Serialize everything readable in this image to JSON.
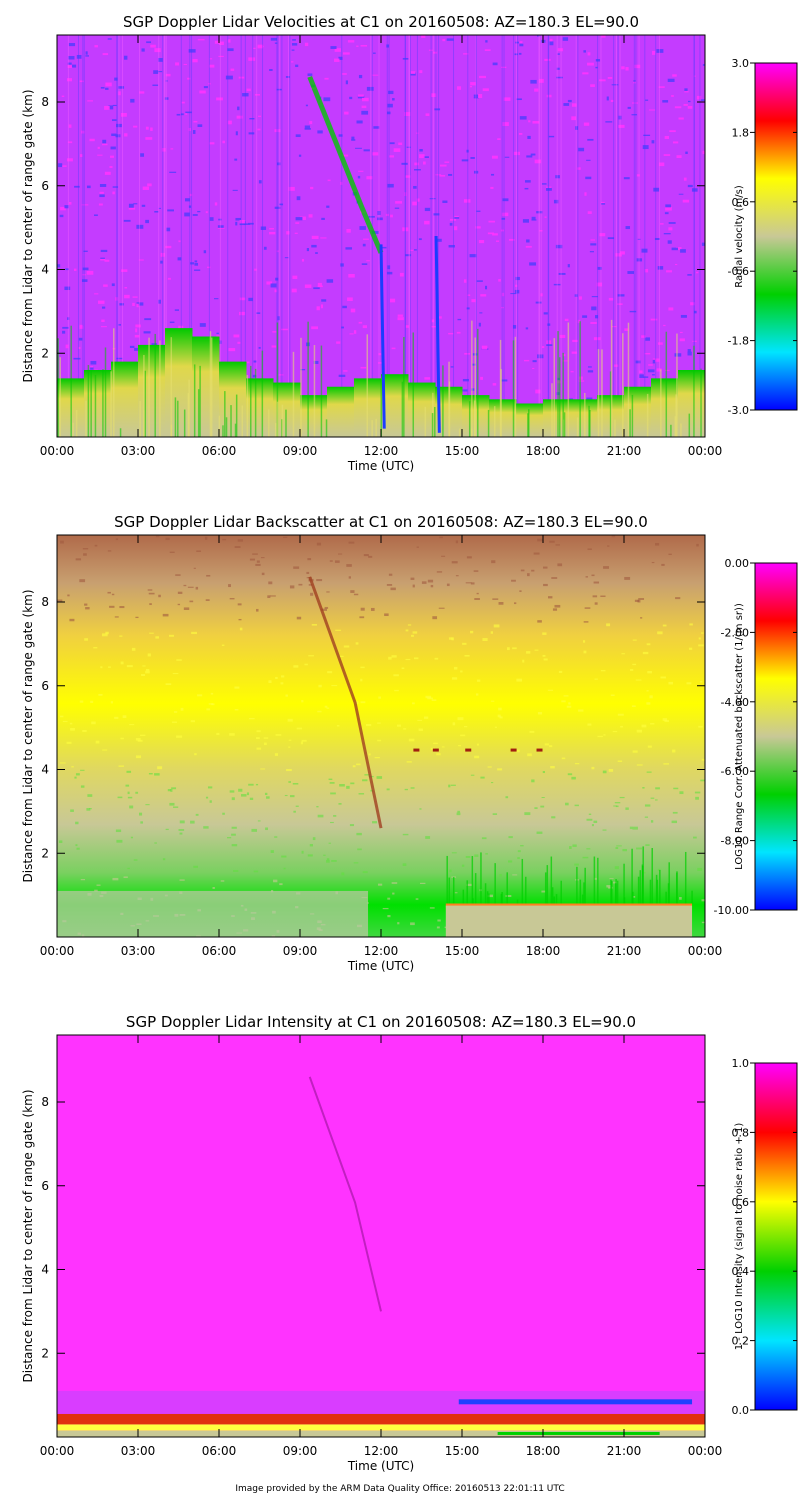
{
  "footer": "Image provided by the ARM Data Quality Office: 20160513 22:01:11 UTC",
  "chart_data": [
    {
      "type": "heatmap",
      "title": "SGP Doppler Lidar Velocities at C1 on 20160508: AZ=180.3 EL=90.0",
      "xlabel": "Time (UTC)",
      "ylabel": "Distance from Lidar to center of range gate (km)",
      "x_ticks": [
        "00:00",
        "03:00",
        "06:00",
        "09:00",
        "12:00",
        "15:00",
        "18:00",
        "21:00",
        "00:00"
      ],
      "y_ticks": [
        "2",
        "4",
        "6",
        "8"
      ],
      "xlim_hours": [
        0,
        24
      ],
      "ylim_km": [
        0,
        9.6
      ],
      "colorbar": {
        "label": "Radial velocity (m/s)",
        "ticks": [
          "3.0",
          "1.8",
          "0.6",
          "-0.6",
          "-1.8",
          "-3.0"
        ],
        "range": [
          -3.0,
          3.0
        ]
      },
      "colormap": [
        "#0000ff",
        "#00e5ff",
        "#00d000",
        "#c8c896",
        "#ffff00",
        "#ff0000",
        "#ff00ff"
      ],
      "description_fields": {
        "background_colors": [
          "#ff33ff",
          "#6a3cff"
        ],
        "low_level_colors": [
          "#c8c896",
          "#ffff00",
          "#00d000"
        ]
      }
    },
    {
      "type": "heatmap",
      "title": "SGP Doppler Lidar Backscatter at C1 on 20160508: AZ=180.3 EL=90.0",
      "xlabel": "Time (UTC)",
      "ylabel": "Distance from Lidar to center of range gate (km)",
      "x_ticks": [
        "00:00",
        "03:00",
        "06:00",
        "09:00",
        "12:00",
        "15:00",
        "18:00",
        "21:00",
        "00:00"
      ],
      "y_ticks": [
        "2",
        "4",
        "6",
        "8"
      ],
      "xlim_hours": [
        0,
        24
      ],
      "ylim_km": [
        0,
        9.6
      ],
      "colorbar": {
        "label": "LOG10 Range Corr. Attenuated backscatter (1/(m sr))",
        "ticks": [
          "0.00",
          "-2.00",
          "-4.00",
          "-6.00",
          "-8.00",
          "-10.00"
        ],
        "range": [
          -10.0,
          0.0
        ]
      },
      "colormap": [
        "#0000ff",
        "#00e5ff",
        "#00d000",
        "#c8c896",
        "#ffff00",
        "#ff0000",
        "#ff00ff"
      ]
    },
    {
      "type": "heatmap",
      "title": "SGP Doppler Lidar Intensity at C1 on 20160508: AZ=180.3 EL=90.0",
      "xlabel": "Time (UTC)",
      "ylabel": "Distance from Lidar to center of range gate (km)",
      "x_ticks": [
        "00:00",
        "03:00",
        "06:00",
        "09:00",
        "12:00",
        "15:00",
        "18:00",
        "21:00",
        "00:00"
      ],
      "y_ticks": [
        "2",
        "4",
        "6",
        "8"
      ],
      "xlim_hours": [
        0,
        24
      ],
      "ylim_km": [
        0,
        9.6
      ],
      "colorbar": {
        "label": "1 - LOG10 Intensity (signal to noise ratio + 1)",
        "ticks": [
          "1.0",
          "0.8",
          "0.6",
          "0.4",
          "0.2",
          "0.0"
        ],
        "range": [
          0.0,
          1.0
        ]
      },
      "colormap": [
        "#0000ff",
        "#00e5ff",
        "#00d000",
        "#ffff00",
        "#ff0000",
        "#ff00ff"
      ]
    }
  ]
}
